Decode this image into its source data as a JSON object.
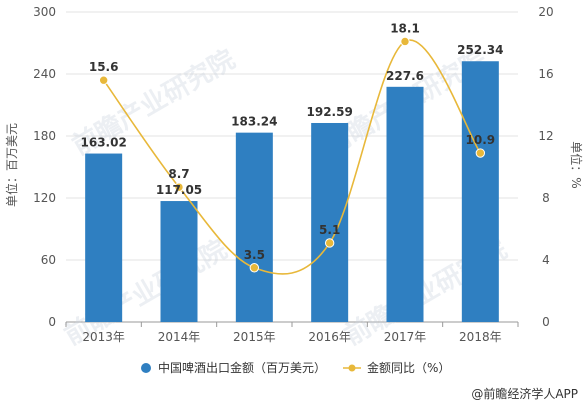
{
  "chart_data": {
    "type": "bar",
    "categories": [
      "2013年",
      "2014年",
      "2015年",
      "2016年",
      "2017年",
      "2018年"
    ],
    "series": [
      {
        "name": "中国啤酒出口金额（百万美元）",
        "type": "bar",
        "axis": "left",
        "color": "#2f7fc1",
        "values": [
          163.02,
          117.05,
          183.24,
          192.59,
          227.6,
          252.34
        ],
        "labels": [
          "163.02",
          "117.05",
          "183.24",
          "192.59",
          "227.6",
          "252.34"
        ]
      },
      {
        "name": "金额同比（%）",
        "type": "line",
        "axis": "right",
        "color": "#e8b83a",
        "values": [
          15.6,
          8.7,
          3.5,
          5.1,
          18.1,
          10.9
        ],
        "labels": [
          "15.6",
          "8.7",
          "3.5",
          "5.1",
          "18.1",
          "10.9"
        ]
      }
    ],
    "ylabel": "单位：百万美元",
    "ylabel_right": "单位：%",
    "ylim": [
      0,
      300
    ],
    "yticks": [
      "0",
      "60",
      "120",
      "180",
      "240",
      "300"
    ],
    "ylim_right": [
      0,
      20
    ],
    "yticks_right": [
      "0",
      "4",
      "8",
      "12",
      "16",
      "20"
    ],
    "grid": true,
    "legend_position": "bottom"
  },
  "footer": {
    "source_label": "@前瞻经济学人APP"
  },
  "watermark": {
    "text": "前瞻产业研究院"
  }
}
